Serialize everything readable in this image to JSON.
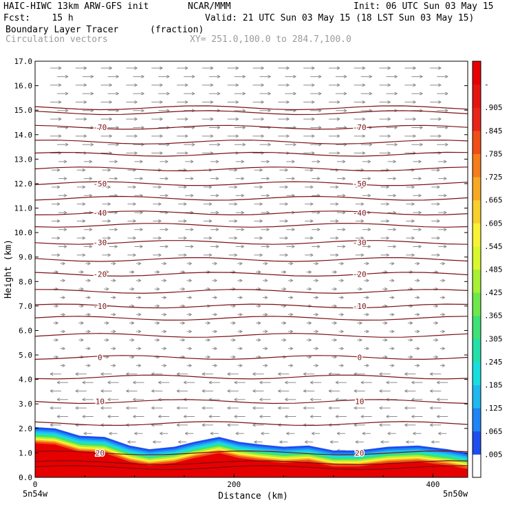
{
  "header": {
    "model": "HAIC-HIWC 13km ARW-GFS init",
    "org": "NCAR/MMM",
    "fcst": "Fcst:    15 h",
    "init": "Init: 06 UTC Sun 03 May 15",
    "valid": "Valid: 21 UTC Sun 03 May 15 (18 LST Sun 03 May 15)",
    "field_name": "Boundary Layer Tracer",
    "field_units": "(fraction)",
    "overlay": "Circulation vectors",
    "xy": "XY= 251.0,100.0 to 284.7,100.0"
  },
  "chart_data": {
    "type": "contour_cross_section",
    "xlabel": "Distance (km)",
    "ylabel": "Height (km)",
    "xlim": [
      0,
      435
    ],
    "ylim": [
      0,
      17
    ],
    "x_ticks": [
      "0",
      "200",
      "400"
    ],
    "x_tick_values": [
      0,
      200,
      400
    ],
    "x_end_labels": [
      "5n54w",
      "5n50w"
    ],
    "y_ticks": [
      "0.0",
      "1.0",
      "2.0",
      "3.0",
      "4.0",
      "5.0",
      "6.0",
      "7.0",
      "8.0",
      "9.0",
      "10.0",
      "11.0",
      "12.0",
      "13.0",
      "14.0",
      "15.0",
      "16.0",
      "17.0"
    ],
    "colorbar": {
      "labels": [
        ".005",
        ".065",
        ".125",
        ".185",
        ".245",
        ".305",
        ".365",
        ".425",
        ".485",
        ".545",
        ".605",
        ".665",
        ".725",
        ".785",
        ".845",
        ".905",
        "-"
      ],
      "colors": [
        "#ffffff",
        "#1c4ef0",
        "#1f84f5",
        "#1fb8ef",
        "#18dede",
        "#22e0a7",
        "#3ee275",
        "#6ee84a",
        "#a7f032",
        "#d8f82c",
        "#f8f236",
        "#f8cf2c",
        "#f7a923",
        "#f57d1c",
        "#f14e17",
        "#e9241b",
        "#e61410",
        "#e60000"
      ]
    },
    "isotherms": [
      {
        "label": "-70",
        "height_km": 14.3
      },
      {
        "label": "-50",
        "height_km": 12.0
      },
      {
        "label": "-40",
        "height_km": 10.8
      },
      {
        "label": "-30",
        "height_km": 9.6
      },
      {
        "label": "-20",
        "height_km": 8.3
      },
      {
        "label": "-10",
        "height_km": 7.0
      },
      {
        "label": "0",
        "height_km": 4.9
      },
      {
        "label": "10",
        "height_km": 3.1
      },
      {
        "label": "20",
        "height_km": 1.0
      }
    ],
    "isotherm_heights_unlabeled": [
      15.1,
      14.9,
      13.7,
      13.2,
      12.6,
      11.4,
      10.3,
      8.9,
      7.6,
      6.5,
      5.8,
      4.1,
      2.2,
      0.6,
      0.4
    ],
    "tracer_top_km": [
      [
        0,
        2.05
      ],
      [
        20,
        2.0
      ],
      [
        45,
        1.7
      ],
      [
        70,
        1.65
      ],
      [
        95,
        1.3
      ],
      [
        115,
        1.15
      ],
      [
        140,
        1.25
      ],
      [
        160,
        1.45
      ],
      [
        185,
        1.65
      ],
      [
        205,
        1.45
      ],
      [
        225,
        1.35
      ],
      [
        250,
        1.25
      ],
      [
        275,
        1.3
      ],
      [
        300,
        1.1
      ],
      [
        325,
        1.1
      ],
      [
        355,
        1.25
      ],
      [
        385,
        1.3
      ],
      [
        415,
        1.15
      ],
      [
        435,
        1.0
      ]
    ]
  }
}
